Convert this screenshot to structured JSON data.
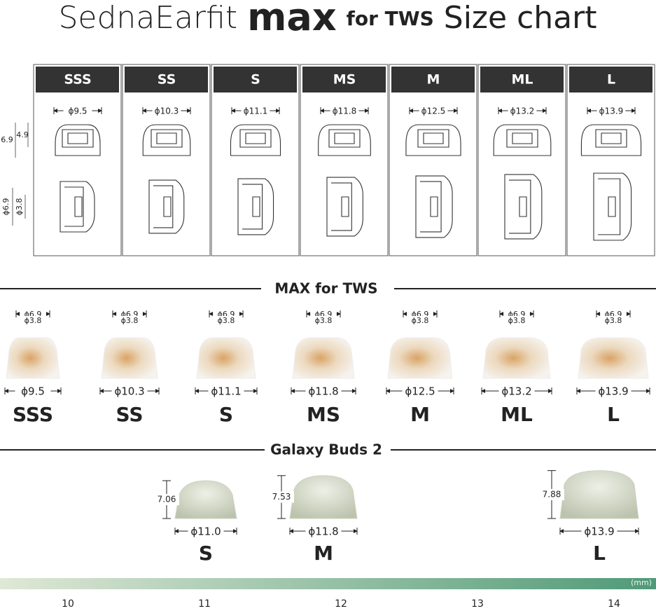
{
  "title": {
    "brand": "SednaEarfit",
    "product": "max",
    "suffix": "for TWS",
    "tail": "Size chart"
  },
  "drawing_table": {
    "side_dims": {
      "height_total": "6.9",
      "height_inner": "4.9",
      "bore_outer": "ϕ6.9",
      "bore_inner": "ϕ3.8"
    },
    "sizes": [
      {
        "label": "SSS",
        "diameter": "ϕ9.5"
      },
      {
        "label": "SS",
        "diameter": "ϕ10.3"
      },
      {
        "label": "S",
        "diameter": "ϕ11.1"
      },
      {
        "label": "MS",
        "diameter": "ϕ11.8"
      },
      {
        "label": "M",
        "diameter": "ϕ12.5"
      },
      {
        "label": "ML",
        "diameter": "ϕ13.2"
      },
      {
        "label": "L",
        "diameter": "ϕ13.9"
      }
    ]
  },
  "max_section": {
    "heading": "MAX for TWS",
    "tips": [
      {
        "outer": "ϕ6.9",
        "inner": "ϕ3.8",
        "diameter": "ϕ9.5",
        "label": "SSS"
      },
      {
        "outer": "ϕ6.9",
        "inner": "ϕ3.8",
        "diameter": "ϕ10.3",
        "label": "SS"
      },
      {
        "outer": "ϕ6.9",
        "inner": "ϕ3.8",
        "diameter": "ϕ11.1",
        "label": "S"
      },
      {
        "outer": "ϕ6.9",
        "inner": "ϕ3.8",
        "diameter": "ϕ11.8",
        "label": "MS"
      },
      {
        "outer": "ϕ6.9",
        "inner": "ϕ3.8",
        "diameter": "ϕ12.5",
        "label": "M"
      },
      {
        "outer": "ϕ6.9",
        "inner": "ϕ3.8",
        "diameter": "ϕ13.2",
        "label": "ML"
      },
      {
        "outer": "ϕ6.9",
        "inner": "ϕ3.8",
        "diameter": "ϕ13.9",
        "label": "L"
      }
    ]
  },
  "galaxy_section": {
    "heading": "Galaxy Buds 2",
    "tips": [
      {
        "height": "7.06",
        "diameter": "ϕ11.0",
        "label": "S"
      },
      {
        "height": "7.53",
        "diameter": "ϕ11.8",
        "label": "M"
      },
      {
        "height": "7.88",
        "diameter": "ϕ13.9",
        "label": "L"
      }
    ]
  },
  "scale": {
    "unit": "(mm)",
    "ticks": [
      "10",
      "11",
      "12",
      "13",
      "14"
    ]
  }
}
